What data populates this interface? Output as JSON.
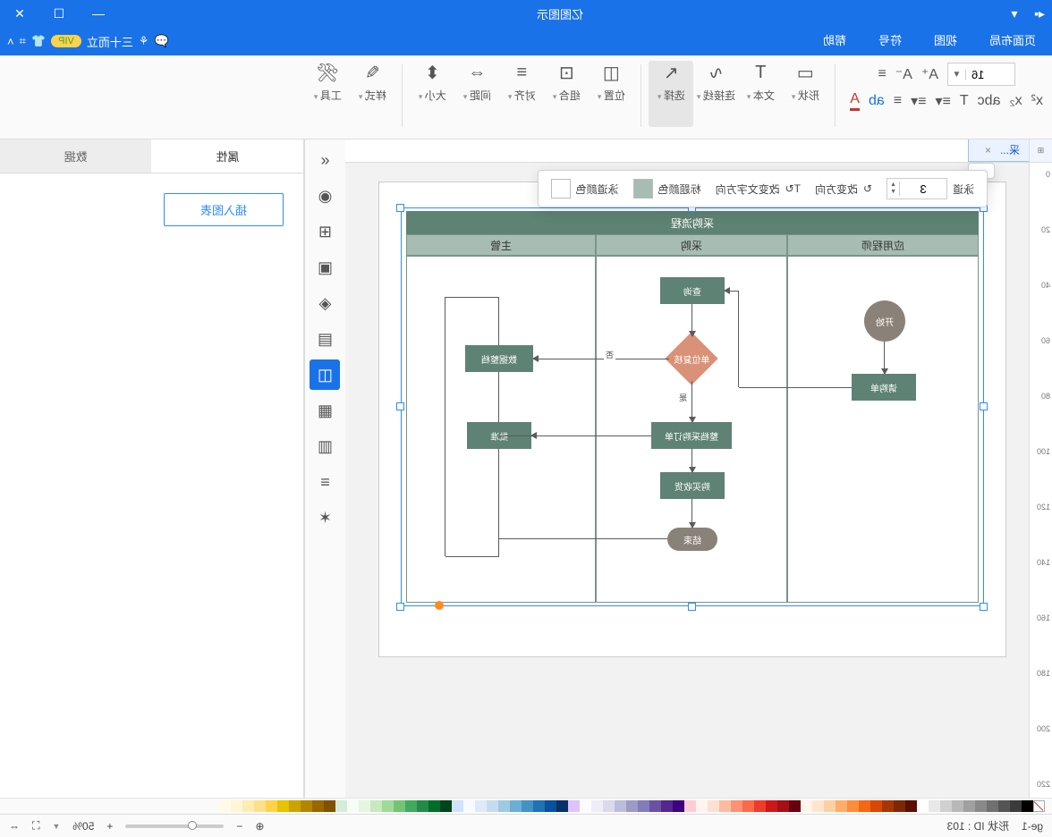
{
  "title": "亿图图示",
  "menu": {
    "tabs": [
      "页面布局",
      "视图",
      "符号",
      "帮助"
    ],
    "rightLabel": "三十而立",
    "vip": "VIP"
  },
  "ribbon": {
    "fontSize": "16",
    "row2Icons": [
      "x²",
      "x₂",
      "abc",
      "T",
      "≡▾",
      "≡▾",
      "≡",
      "ab",
      "A"
    ],
    "bigs": [
      {
        "label": "形状",
        "sel": false
      },
      {
        "label": "文本",
        "sel": false
      },
      {
        "label": "连接线",
        "sel": false
      },
      {
        "label": "选择",
        "sel": true
      },
      {
        "label": "位置",
        "sel": false
      },
      {
        "label": "组合",
        "sel": false
      },
      {
        "label": "对齐",
        "sel": false
      },
      {
        "label": "间距",
        "sel": false
      },
      {
        "label": "大小",
        "sel": false
      },
      {
        "label": "样式",
        "sel": false
      },
      {
        "label": "工具",
        "sel": false
      }
    ]
  },
  "floatbar": {
    "laneCountLabel": "泳道",
    "laneCount": "3",
    "dirLabel": "改变方向",
    "txtDirLabel": "改变文字方向",
    "hdrColorLabel": "标题颜色",
    "hdrColor": "#a7bdb4",
    "laneColorLabel": "泳道颜色",
    "laneColor": "#ffffff"
  },
  "leftIcons": [
    "«",
    "◉",
    "⊞",
    "▣",
    "◈",
    "▤",
    "◫",
    "▦",
    "▥",
    "≡",
    "✶"
  ],
  "leftSelected": 6,
  "rightTabs": {
    "a": "属性",
    "b": "数据"
  },
  "insertChart": "插入图表",
  "rulerH": [
    "0",
    "20",
    "40",
    "60",
    "80",
    "100",
    "120",
    "140",
    "160",
    "180",
    "200",
    "220"
  ],
  "pageTab": "采...",
  "swim": {
    "title": "采购流程",
    "lanes": [
      "应用程师",
      "采购",
      "主管"
    ],
    "titleColor": "#5e8274",
    "headColor": "#a7bdb4",
    "border": "#7a9489",
    "nodeColor": "#5e8274",
    "diamondColor": "#d99177",
    "termColor": "#8a8178",
    "nodes": {
      "start": "开始",
      "req": "请购单",
      "review": "查询",
      "decide": "单位复核",
      "yes": "是",
      "no": "否",
      "mgr": "数据整档",
      "po": "整档采购订单",
      "approve": "批准",
      "buy": "购买收货",
      "end": "结束"
    }
  },
  "status": {
    "page": "ge-1",
    "idLabel": "形状 ID : ",
    "id": "103",
    "zoom": "50%"
  },
  "palette": [
    "#000000",
    "#3b3b3b",
    "#555555",
    "#707070",
    "#898989",
    "#a0a0a0",
    "#b8b8b8",
    "#d0d0d0",
    "#e8e8e8",
    "#ffffff",
    "#5b0f00",
    "#7f2704",
    "#a63603",
    "#d94801",
    "#f16913",
    "#fd8d3c",
    "#fdae6b",
    "#fdd0a2",
    "#fee6ce",
    "#fff5eb",
    "#67000d",
    "#a50f15",
    "#cb181d",
    "#ef3b2c",
    "#fb6a4a",
    "#fc9272",
    "#fcbba1",
    "#fee0d2",
    "#fff5f0",
    "#ffccd5",
    "#3f007d",
    "#54278f",
    "#6a51a3",
    "#807dba",
    "#9e9ac8",
    "#bcbddc",
    "#dadaeb",
    "#efedf5",
    "#fcfbfd",
    "#e0c3fc",
    "#08306b",
    "#08519c",
    "#2171b5",
    "#4292c6",
    "#6baed6",
    "#9ecae1",
    "#c6dbef",
    "#deebf7",
    "#f7fbff",
    "#cfe2ff",
    "#00441b",
    "#006d2c",
    "#238b45",
    "#41ab5d",
    "#74c476",
    "#a1d99b",
    "#c7e9c0",
    "#e5f5e0",
    "#f7fcf5",
    "#d4edda",
    "#7f5200",
    "#996600",
    "#b38600",
    "#cca300",
    "#e6c200",
    "#ffd24a",
    "#ffe08a",
    "#ffecb3",
    "#fff6d9",
    "#fffbe6"
  ]
}
